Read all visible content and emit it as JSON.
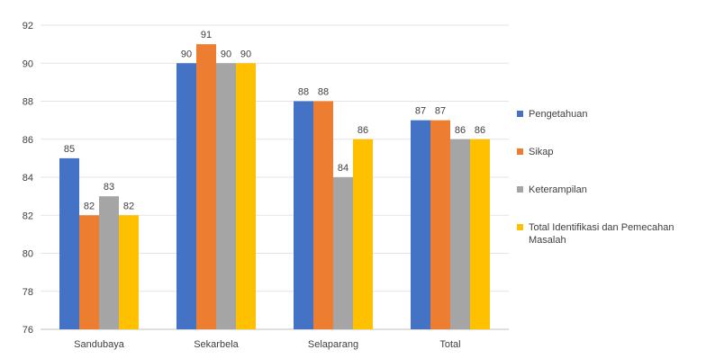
{
  "chart_data": {
    "type": "bar",
    "title": "",
    "xlabel": "",
    "ylabel": "",
    "categories": [
      "Sandubaya",
      "Sekarbela",
      "Selaparang",
      "Total"
    ],
    "ylim": [
      76,
      92
    ],
    "yticks": [
      76,
      78,
      80,
      82,
      84,
      86,
      88,
      90,
      92
    ],
    "grid": true,
    "legend_position": "right",
    "series": [
      {
        "name": "Pengetahuan",
        "color": "#4472C4",
        "values": [
          85,
          90,
          88,
          87
        ]
      },
      {
        "name": "Sikap",
        "color": "#ED7D31",
        "values": [
          82,
          91,
          88,
          87
        ]
      },
      {
        "name": "Keterampilan",
        "color": "#A5A5A5",
        "values": [
          83,
          90,
          84,
          86
        ]
      },
      {
        "name": "Total Identifikasi dan Pemecahan Masalah",
        "color": "#FFC000",
        "values": [
          82,
          90,
          86,
          86
        ]
      }
    ]
  }
}
